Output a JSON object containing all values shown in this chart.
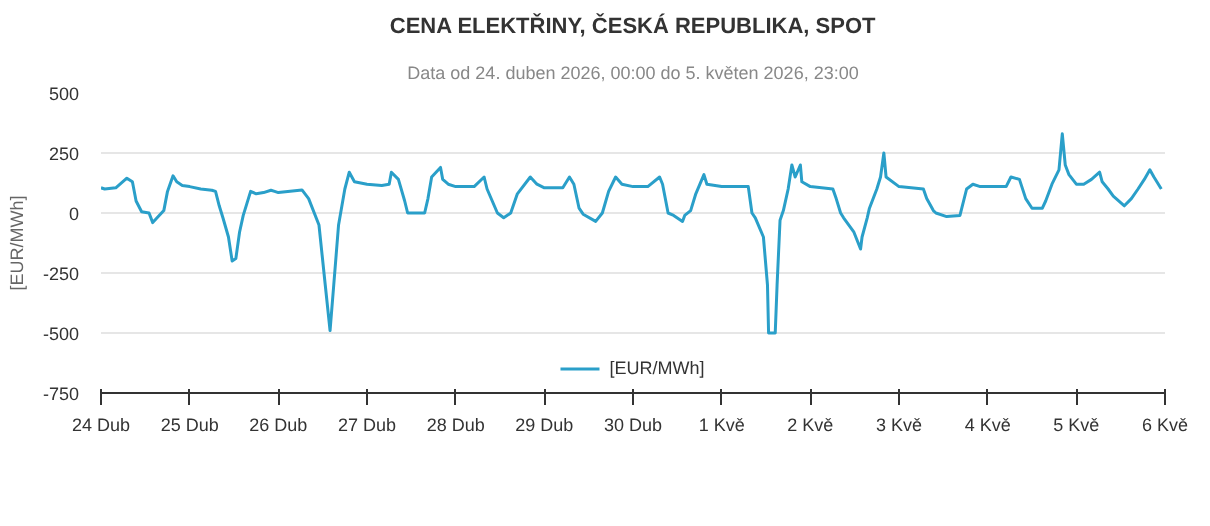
{
  "chart_data": {
    "type": "line",
    "title": "CENA ELEKTŘINY, ČESKÁ REPUBLIKA, SPOT",
    "subtitle": "Data od 24. duben 2026, 00:00 do 5. květen 2026, 23:00",
    "ylabel": "[EUR/MWh]",
    "xlim": [
      "2026-04-24",
      "2026-05-06"
    ],
    "xticks": [
      {
        "value": "2026-04-24",
        "label": "24 Dub"
      },
      {
        "value": "2026-04-25",
        "label": "25 Dub"
      },
      {
        "value": "2026-04-26",
        "label": "26 Dub"
      },
      {
        "value": "2026-04-27",
        "label": "27 Dub"
      },
      {
        "value": "2026-04-28",
        "label": "28 Dub"
      },
      {
        "value": "2026-04-29",
        "label": "29 Dub"
      },
      {
        "value": "2026-04-30",
        "label": "30 Dub"
      },
      {
        "value": "2026-05-01",
        "label": "1 Kvě"
      },
      {
        "value": "2026-05-02",
        "label": "2 Kvě"
      },
      {
        "value": "2026-05-03",
        "label": "3 Kvě"
      },
      {
        "value": "2026-05-04",
        "label": "4 Kvě"
      },
      {
        "value": "2026-05-05",
        "label": "5 Kvě"
      },
      {
        "value": "2026-05-06",
        "label": "6 Kvě"
      }
    ],
    "ylim": [
      -750,
      500
    ],
    "yticks": [
      -750,
      -500,
      -250,
      0,
      250,
      500
    ],
    "grid": "y",
    "legend": "bottom",
    "series": [
      {
        "name": "[EUR/MWh]",
        "color": "#2a9fc9",
        "x": [
          "2026-04-24T00:00",
          "2026-04-24T01:00",
          "2026-04-24T04:00",
          "2026-04-24T07:00",
          "2026-04-24T08:30",
          "2026-04-24T09:30",
          "2026-04-24T11:00",
          "2026-04-24T13:00",
          "2026-04-24T14:00",
          "2026-04-24T15:30",
          "2026-04-24T17:00",
          "2026-04-24T18:00",
          "2026-04-24T19:30",
          "2026-04-24T20:30",
          "2026-04-24T22:00",
          "2026-04-25T00:00",
          "2026-04-25T03:00",
          "2026-04-25T06:00",
          "2026-04-25T07:00",
          "2026-04-25T08:00",
          "2026-04-25T09:00",
          "2026-04-25T10:30",
          "2026-04-25T11:30",
          "2026-04-25T12:30",
          "2026-04-25T13:30",
          "2026-04-25T14:30",
          "2026-04-25T15:30",
          "2026-04-25T16:30",
          "2026-04-25T18:00",
          "2026-04-25T20:00",
          "2026-04-25T22:00",
          "2026-04-25T23:00",
          "2026-04-26T00:00",
          "2026-04-26T06:24",
          "2026-04-26T08:12",
          "2026-04-26T11:00",
          "2026-04-26T12:42",
          "2026-04-26T14:00",
          "2026-04-26T15:00",
          "2026-04-26T16:18",
          "2026-04-26T18:00",
          "2026-04-26T19:12",
          "2026-04-26T20:36",
          "2026-04-27T00:00",
          "2026-04-27T04:00",
          "2026-04-27T06:00",
          "2026-04-27T06:36",
          "2026-04-27T08:30",
          "2026-04-27T10:12",
          "2026-04-27T11:00",
          "2026-04-27T15:36",
          "2026-04-27T16:30",
          "2026-04-27T17:30",
          "2026-04-27T19:54",
          "2026-04-27T20:30",
          "2026-04-27T22:00",
          "2026-04-28T00:00",
          "2026-04-28T05:00",
          "2026-04-28T07:42",
          "2026-04-28T08:30",
          "2026-04-28T11:18",
          "2026-04-28T13:00",
          "2026-04-28T14:54",
          "2026-04-28T16:42",
          "2026-04-28T20:12",
          "2026-04-28T22:00",
          "2026-04-29T00:00",
          "2026-04-29T05:00",
          "2026-04-29T06:48",
          "2026-04-29T08:00",
          "2026-04-29T09:24",
          "2026-04-29T10:30",
          "2026-04-29T13:54",
          "2026-04-29T15:42",
          "2026-04-29T17:24",
          "2026-04-29T19:18",
          "2026-04-29T21:00",
          "2026-04-30T00:00",
          "2026-04-30T04:00",
          "2026-04-30T07:12",
          "2026-04-30T08:00",
          "2026-04-30T09:30",
          "2026-04-30T11:00",
          "2026-04-30T13:24",
          "2026-04-30T14:00",
          "2026-04-30T15:36",
          "2026-04-30T17:00",
          "2026-04-30T19:12",
          "2026-04-30T20:00",
          "2026-05-01T00:00",
          "2026-05-01T07:12",
          "2026-05-01T08:12",
          "2026-05-01T09:06",
          "2026-05-01T11:18",
          "2026-05-01T12:24",
          "2026-05-01T12:42",
          "2026-05-01T14:30",
          "2026-05-01T15:00",
          "2026-05-01T15:48",
          "2026-05-01T16:42",
          "2026-05-01T18:00",
          "2026-05-01T19:00",
          "2026-05-01T19:54",
          "2026-05-01T21:18",
          "2026-05-01T21:42",
          "2026-05-02T00:00",
          "2026-05-02T06:06",
          "2026-05-02T07:00",
          "2026-05-02T08:12",
          "2026-05-02T09:00",
          "2026-05-02T11:48",
          "2026-05-02T13:36",
          "2026-05-02T14:00",
          "2026-05-02T15:24",
          "2026-05-02T16:00",
          "2026-05-02T18:00",
          "2026-05-02T19:00",
          "2026-05-02T19:54",
          "2026-05-02T20:30",
          "2026-05-03T00:00",
          "2026-05-03T06:36",
          "2026-05-03T07:30",
          "2026-05-03T09:18",
          "2026-05-03T10:00",
          "2026-05-03T12:54",
          "2026-05-03T16:30",
          "2026-05-03T18:18",
          "2026-05-03T20:00",
          "2026-05-03T22:00",
          "2026-05-04T00:00",
          "2026-05-04T05:00",
          "2026-05-04T06:18",
          "2026-05-04T08:36",
          "2026-05-04T10:18",
          "2026-05-04T12:00",
          "2026-05-04T14:48",
          "2026-05-04T15:42",
          "2026-05-04T17:24",
          "2026-05-04T19:18",
          "2026-05-04T20:12",
          "2026-05-04T21:00",
          "2026-05-04T22:00",
          "2026-05-05T00:00",
          "2026-05-05T02:00",
          "2026-05-05T04:06",
          "2026-05-05T06:18",
          "2026-05-05T07:00",
          "2026-05-05T08:36",
          "2026-05-05T10:00",
          "2026-05-05T13:00",
          "2026-05-05T14:54",
          "2026-05-05T16:42",
          "2026-05-05T18:24",
          "2026-05-05T19:54",
          "2026-05-05T21:00",
          "2026-05-05T23:00"
        ],
        "values": [
          105,
          100,
          105,
          145,
          130,
          50,
          5,
          0,
          -40,
          -15,
          10,
          90,
          155,
          130,
          115,
          110,
          100,
          95,
          90,
          30,
          -20,
          -100,
          -200,
          -190,
          -80,
          -10,
          40,
          90,
          80,
          85,
          95,
          90,
          85,
          96,
          60,
          -50,
          -300,
          -490,
          -300,
          -50,
          100,
          170,
          130,
          120,
          115,
          120,
          170,
          140,
          50,
          0,
          0,
          60,
          150,
          190,
          140,
          120,
          110,
          110,
          150,
          100,
          0,
          -20,
          0,
          80,
          150,
          120,
          105,
          105,
          150,
          120,
          20,
          -5,
          -35,
          0,
          90,
          150,
          120,
          110,
          110,
          150,
          120,
          0,
          -10,
          -35,
          -10,
          10,
          80,
          160,
          120,
          110,
          110,
          0,
          -20,
          -100,
          -300,
          -500,
          -500,
          -300,
          -30,
          10,
          100,
          200,
          150,
          200,
          130,
          110,
          100,
          60,
          0,
          -20,
          -80,
          -150,
          -100,
          -20,
          20,
          100,
          150,
          250,
          150,
          110,
          100,
          60,
          10,
          0,
          -15,
          -10,
          100,
          120,
          110,
          110,
          110,
          150,
          140,
          60,
          20,
          20,
          50,
          120,
          180,
          330,
          200,
          160,
          120,
          120,
          140,
          170,
          130,
          100,
          70,
          30,
          60,
          100,
          140,
          180,
          150,
          100
        ]
      }
    ]
  }
}
